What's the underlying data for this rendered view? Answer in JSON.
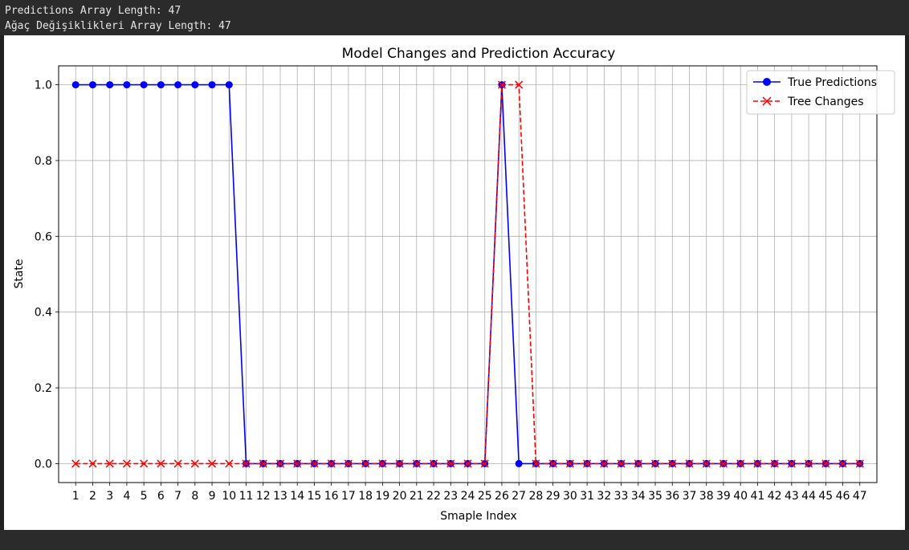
{
  "console": {
    "lines": [
      "Predictions Array Length: 47",
      "Ağaç Değişiklikleri Array Length: 47"
    ]
  },
  "chart_data": {
    "type": "line",
    "title": "Model Changes and Prediction Accuracy",
    "xlabel": "Smaple Index",
    "ylabel": "State",
    "x": [
      1,
      2,
      3,
      4,
      5,
      6,
      7,
      8,
      9,
      10,
      11,
      12,
      13,
      14,
      15,
      16,
      17,
      18,
      19,
      20,
      21,
      22,
      23,
      24,
      25,
      26,
      27,
      28,
      29,
      30,
      31,
      32,
      33,
      34,
      35,
      36,
      37,
      38,
      39,
      40,
      41,
      42,
      43,
      44,
      45,
      46,
      47
    ],
    "yticks": [
      "0.0",
      "0.2",
      "0.4",
      "0.6",
      "0.8",
      "1.0"
    ],
    "xlim": [
      0.0,
      48.0
    ],
    "ylim": [
      -0.05,
      1.05
    ],
    "grid": true,
    "legend_position": "top-right",
    "series": [
      {
        "name": "True Predictions",
        "color": "#0000ff",
        "marker": "circle",
        "linestyle": "solid",
        "values": [
          1,
          1,
          1,
          1,
          1,
          1,
          1,
          1,
          1,
          1,
          0,
          0,
          0,
          0,
          0,
          0,
          0,
          0,
          0,
          0,
          0,
          0,
          0,
          0,
          0,
          1,
          0,
          0,
          0,
          0,
          0,
          0,
          0,
          0,
          0,
          0,
          0,
          0,
          0,
          0,
          0,
          0,
          0,
          0,
          0,
          0,
          0
        ]
      },
      {
        "name": "Tree Changes",
        "color": "#ff0000",
        "marker": "x",
        "linestyle": "dashed",
        "values": [
          0,
          0,
          0,
          0,
          0,
          0,
          0,
          0,
          0,
          0,
          0,
          0,
          0,
          0,
          0,
          0,
          0,
          0,
          0,
          0,
          0,
          0,
          0,
          0,
          0,
          1,
          1,
          0,
          0,
          0,
          0,
          0,
          0,
          0,
          0,
          0,
          0,
          0,
          0,
          0,
          0,
          0,
          0,
          0,
          0,
          0,
          0
        ]
      }
    ]
  }
}
